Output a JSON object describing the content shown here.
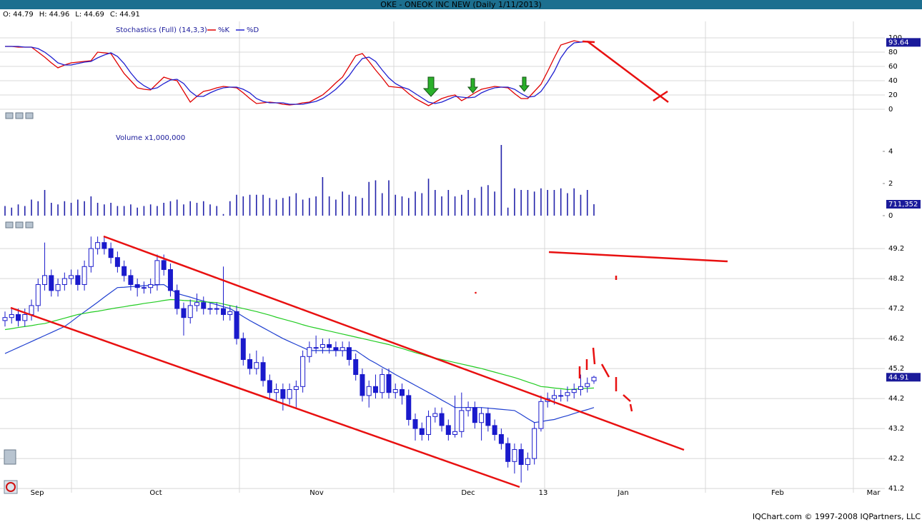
{
  "header": {
    "title": "OKE - ONEOK INC NEW (Daily 1/11/2013)",
    "ohlc_labels": [
      "O:",
      "H:",
      "L:",
      "C:"
    ]
  },
  "footer": "IQChart.com © 1997-2008 IQPartners, LLC",
  "chart_data": [
    {
      "type": "line",
      "title": "Stochastics (Full) (14,3,3)",
      "ylim": [
        -22,
        121
      ],
      "yticks": [
        0,
        20,
        40,
        60,
        80,
        100
      ],
      "grid": true,
      "series": [
        {
          "name": "%K",
          "color": "#e00000",
          "values": [
            88,
            88,
            87,
            87,
            87,
            80,
            73,
            65,
            58,
            62,
            65,
            66,
            67,
            68,
            80,
            79,
            78,
            64,
            50,
            40,
            30,
            28,
            27,
            36,
            45,
            42,
            40,
            25,
            10,
            18,
            25,
            27,
            30,
            32,
            31,
            30,
            23,
            15,
            8,
            9,
            10,
            9,
            7,
            6,
            7,
            9,
            10,
            15,
            20,
            28,
            37,
            45,
            60,
            75,
            78,
            67,
            55,
            44,
            32,
            31,
            30,
            22,
            15,
            10,
            5,
            10,
            15,
            18,
            20,
            12,
            17,
            23,
            28,
            30,
            32,
            31,
            30,
            22,
            15,
            15,
            25,
            35,
            53,
            72,
            90,
            93,
            96,
            94,
            95,
            93.64
          ]
        },
        {
          "name": "%D",
          "color": "#2020d0",
          "values": [
            88,
            88,
            88,
            87,
            87,
            85,
            80,
            73,
            65,
            62,
            62,
            64,
            66,
            67,
            72,
            76,
            79,
            74,
            64,
            51,
            40,
            33,
            28,
            30,
            36,
            41,
            42,
            36,
            25,
            18,
            18,
            23,
            27,
            30,
            31,
            31,
            28,
            23,
            15,
            11,
            9,
            9,
            9,
            7,
            7,
            7,
            9,
            11,
            15,
            21,
            28,
            37,
            47,
            60,
            71,
            73,
            67,
            55,
            44,
            36,
            31,
            28,
            22,
            16,
            10,
            8,
            10,
            14,
            18,
            17,
            16,
            17,
            23,
            27,
            30,
            31,
            31,
            28,
            22,
            17,
            18,
            25,
            38,
            53,
            72,
            85,
            93,
            94,
            95,
            94
          ]
        }
      ]
    },
    {
      "type": "bar",
      "title": "Volume x1,000,000",
      "color": "#2222aa",
      "ylim": [
        -0.8,
        5.2
      ],
      "yticks": [
        0,
        2,
        4
      ],
      "grid": false,
      "last_label": "711,352",
      "values": [
        0.6,
        0.5,
        0.7,
        0.6,
        1.0,
        0.9,
        1.6,
        0.8,
        0.7,
        0.9,
        0.8,
        1.0,
        0.9,
        1.2,
        0.8,
        0.7,
        0.8,
        0.6,
        0.6,
        0.7,
        0.5,
        0.6,
        0.7,
        0.6,
        0.8,
        0.9,
        1.0,
        0.7,
        0.9,
        0.8,
        0.9,
        0.7,
        0.6,
        0.1,
        0.9,
        1.3,
        1.2,
        1.3,
        1.3,
        1.3,
        1.1,
        1.0,
        1.1,
        1.2,
        1.4,
        1.0,
        1.1,
        1.2,
        2.4,
        1.2,
        1.0,
        1.5,
        1.3,
        1.2,
        1.1,
        2.1,
        2.2,
        1.4,
        2.2,
        1.3,
        1.2,
        1.1,
        1.5,
        1.4,
        2.3,
        1.6,
        1.2,
        1.6,
        1.2,
        1.3,
        1.6,
        1.1,
        1.8,
        1.9,
        1.5,
        4.4,
        0.5,
        1.7,
        1.6,
        1.6,
        1.5,
        1.7,
        1.6,
        1.6,
        1.7,
        1.4,
        1.7,
        1.3,
        1.6,
        0.711352
      ]
    },
    {
      "type": "candlestick",
      "ylim": [
        41.06,
        49.63
      ],
      "yticks": [
        41.2,
        42.2,
        43.2,
        44.2,
        45.2,
        46.2,
        47.2,
        48.2,
        49.2
      ],
      "grid": true,
      "body_color": "#1a1acc",
      "x_axis_labels": [
        "Sep",
        "Oct",
        "Nov",
        "Dec",
        "13",
        "Jan",
        "Feb",
        "Mar"
      ],
      "open": [
        46.8,
        46.9,
        47.0,
        46.8,
        47.0,
        47.3,
        48.0,
        48.3,
        47.8,
        48.0,
        48.2,
        48.3,
        48.0,
        48.6,
        49.2,
        49.4,
        49.2,
        48.9,
        48.6,
        48.3,
        48.0,
        47.9,
        47.9,
        48.0,
        48.8,
        48.5,
        47.8,
        47.2,
        46.9,
        47.3,
        47.4,
        47.2,
        47.2,
        47.2,
        47.0,
        47.1,
        46.2,
        45.5,
        45.2,
        45.4,
        44.8,
        44.4,
        44.5,
        44.2,
        44.5,
        44.6,
        45.6,
        45.9,
        45.9,
        46.0,
        45.9,
        45.8,
        45.9,
        45.5,
        45.0,
        44.3,
        44.6,
        44.4,
        45.0,
        44.4,
        44.5,
        44.3,
        43.5,
        43.2,
        43.0,
        43.6,
        43.7,
        43.3,
        43.0,
        43.1,
        43.8,
        43.9,
        43.4,
        43.7,
        43.3,
        43.0,
        42.7,
        42.1,
        42.5,
        42.0,
        42.2,
        43.2,
        44.1,
        44.2,
        44.3,
        44.3,
        44.4,
        44.5,
        44.6,
        44.79
      ],
      "high": [
        47.1,
        47.2,
        47.2,
        47.2,
        47.5,
        48.2,
        49.4,
        48.5,
        48.2,
        48.4,
        48.5,
        48.5,
        48.8,
        49.6,
        49.6,
        49.6,
        49.4,
        49.1,
        48.8,
        48.5,
        48.2,
        48.1,
        48.2,
        49.0,
        49.0,
        48.7,
        48.0,
        47.4,
        47.5,
        47.7,
        47.6,
        47.4,
        47.4,
        48.6,
        47.3,
        47.3,
        46.4,
        45.7,
        45.8,
        45.6,
        45.0,
        44.7,
        44.7,
        44.7,
        44.8,
        45.8,
        46.1,
        46.3,
        46.2,
        46.2,
        46.1,
        46.1,
        46.1,
        45.7,
        45.2,
        44.8,
        45.0,
        45.2,
        45.2,
        44.7,
        44.7,
        44.5,
        43.7,
        43.4,
        43.8,
        43.9,
        43.9,
        43.5,
        44.3,
        44.4,
        44.1,
        44.1,
        43.9,
        43.9,
        43.5,
        43.2,
        42.9,
        42.7,
        42.7,
        42.4,
        43.4,
        44.3,
        44.4,
        44.5,
        44.5,
        44.6,
        44.7,
        45.0,
        44.9,
        44.96
      ],
      "low": [
        46.6,
        46.7,
        46.6,
        46.6,
        46.8,
        47.1,
        47.8,
        47.6,
        47.6,
        47.8,
        48.0,
        47.8,
        47.8,
        48.4,
        49.0,
        49.0,
        48.7,
        48.4,
        48.1,
        47.8,
        47.6,
        47.7,
        47.7,
        47.8,
        48.3,
        47.6,
        47.0,
        46.3,
        46.7,
        47.1,
        47.0,
        47.0,
        47.0,
        46.8,
        46.8,
        46.0,
        45.3,
        45.0,
        45.0,
        44.6,
        44.2,
        44.1,
        43.8,
        44.0,
        43.9,
        44.4,
        45.4,
        45.7,
        45.7,
        45.7,
        45.6,
        45.6,
        45.3,
        44.8,
        44.1,
        43.9,
        44.2,
        44.2,
        44.2,
        44.2,
        44.0,
        43.3,
        42.8,
        42.8,
        42.8,
        43.4,
        43.1,
        42.8,
        42.9,
        42.9,
        43.6,
        43.2,
        42.8,
        43.1,
        42.8,
        42.5,
        41.9,
        41.7,
        41.4,
        41.8,
        42.0,
        43.1,
        43.9,
        44.0,
        44.1,
        44.1,
        44.2,
        44.3,
        44.4,
        44.69
      ],
      "close": [
        46.9,
        47.0,
        46.8,
        47.0,
        47.3,
        48.0,
        48.3,
        47.8,
        48.0,
        48.2,
        48.3,
        48.0,
        48.6,
        49.2,
        49.4,
        49.2,
        48.9,
        48.6,
        48.3,
        48.0,
        47.9,
        47.9,
        48.0,
        48.8,
        48.5,
        47.8,
        47.2,
        46.9,
        47.3,
        47.4,
        47.2,
        47.2,
        47.2,
        47.0,
        47.1,
        46.2,
        45.5,
        45.2,
        45.4,
        44.8,
        44.4,
        44.5,
        44.2,
        44.5,
        44.6,
        45.6,
        45.9,
        45.9,
        46.0,
        45.9,
        45.8,
        45.9,
        45.5,
        45.0,
        44.3,
        44.6,
        44.4,
        45.0,
        44.4,
        44.5,
        44.3,
        43.5,
        43.2,
        43.0,
        43.6,
        43.7,
        43.3,
        43.0,
        43.1,
        43.8,
        43.9,
        43.4,
        43.7,
        43.3,
        43.0,
        42.7,
        42.1,
        42.5,
        42.0,
        42.2,
        43.2,
        44.1,
        44.2,
        44.3,
        44.3,
        44.4,
        44.5,
        44.6,
        44.7,
        44.91
      ],
      "series": [
        {
          "color": "#1f3fd0",
          "values": [
            45.7,
            45.8,
            45.9,
            46.0,
            46.1,
            46.2,
            46.3,
            46.4,
            46.5,
            46.6,
            46.76,
            46.93,
            47.09,
            47.25,
            47.41,
            47.58,
            47.74,
            47.9,
            47.91,
            47.93,
            47.94,
            47.96,
            47.97,
            47.99,
            48.0,
            47.85,
            47.7,
            47.64,
            47.58,
            47.51,
            47.45,
            47.39,
            47.33,
            47.26,
            47.2,
            47.07,
            46.93,
            46.8,
            46.68,
            46.56,
            46.44,
            46.32,
            46.2,
            46.1,
            46.0,
            45.9,
            45.8,
            45.8,
            45.8,
            45.8,
            45.8,
            45.8,
            45.8,
            45.8,
            45.65,
            45.5,
            45.38,
            45.25,
            45.13,
            45.0,
            44.88,
            44.76,
            44.64,
            44.52,
            44.4,
            44.28,
            44.15,
            44.03,
            43.9,
            43.9,
            43.9,
            43.9,
            43.9,
            43.88,
            43.86,
            43.84,
            43.82,
            43.8,
            43.67,
            43.53,
            43.4,
            43.43,
            43.47,
            43.5,
            43.57,
            43.63,
            43.7,
            43.77,
            43.83,
            43.9
          ]
        },
        {
          "color": "#22cc22",
          "values": [
            46.5,
            46.53,
            46.57,
            46.6,
            46.63,
            46.67,
            46.7,
            46.76,
            46.82,
            46.88,
            46.94,
            47.0,
            47.04,
            47.08,
            47.11,
            47.15,
            47.19,
            47.23,
            47.26,
            47.3,
            47.33,
            47.37,
            47.4,
            47.43,
            47.47,
            47.5,
            47.49,
            47.47,
            47.46,
            47.44,
            47.43,
            47.41,
            47.4,
            47.35,
            47.3,
            47.25,
            47.2,
            47.15,
            47.1,
            47.04,
            46.98,
            46.91,
            46.85,
            46.79,
            46.73,
            46.66,
            46.6,
            46.55,
            46.5,
            46.45,
            46.4,
            46.35,
            46.3,
            46.25,
            46.2,
            46.15,
            46.1,
            46.05,
            46.0,
            45.93,
            45.87,
            45.8,
            45.73,
            45.67,
            45.6,
            45.55,
            45.5,
            45.45,
            45.4,
            45.35,
            45.3,
            45.25,
            45.2,
            45.14,
            45.08,
            45.02,
            44.96,
            44.9,
            44.83,
            44.75,
            44.68,
            44.6,
            44.58,
            44.55,
            44.53,
            44.5,
            44.51,
            44.53,
            44.54,
            44.55
          ]
        }
      ]
    }
  ]
}
